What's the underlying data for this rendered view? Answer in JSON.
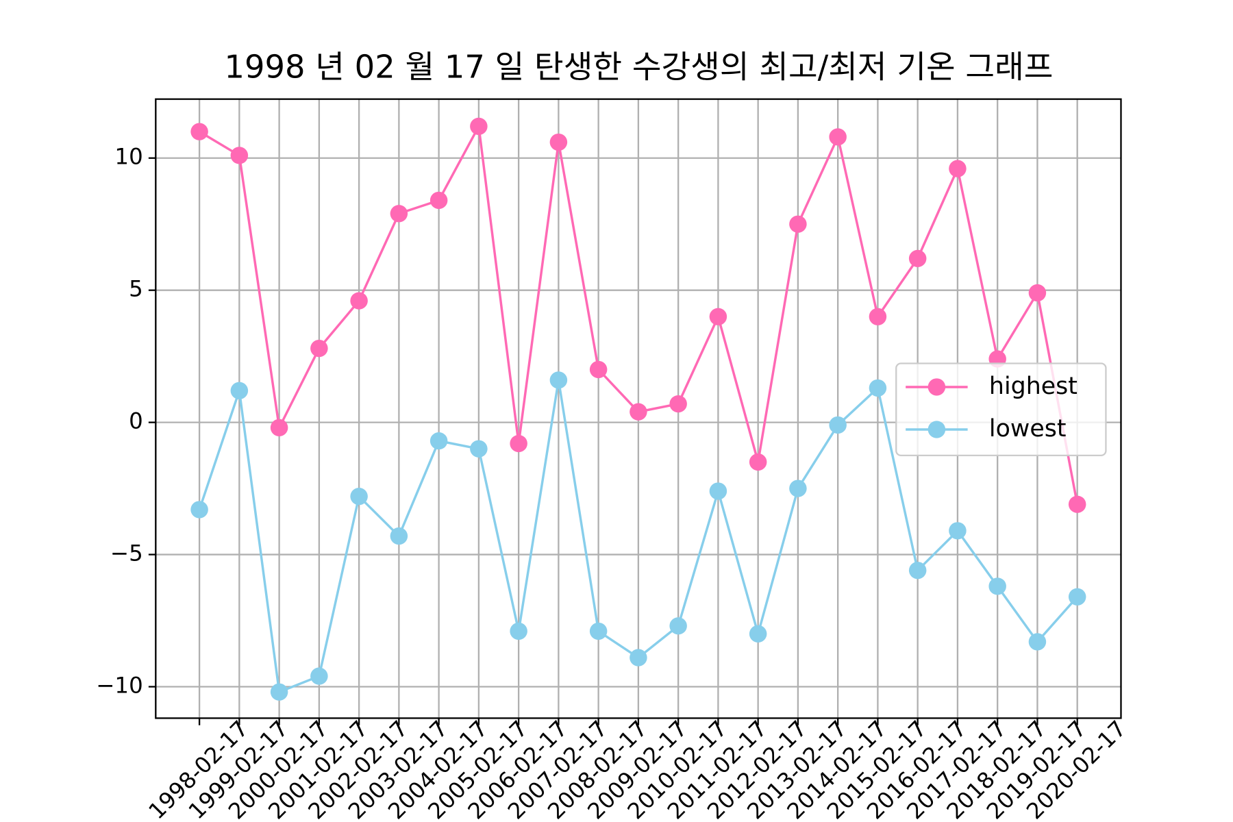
{
  "chart_data": {
    "type": "line",
    "title": "1998 년 02 월 17 일 탄생한 수강생의 최고/최저 기온 그래프",
    "categories": [
      "1998-02-17",
      "1999-02-17",
      "2000-02-17",
      "2001-02-17",
      "2002-02-17",
      "2003-02-17",
      "2004-02-17",
      "2005-02-17",
      "2006-02-17",
      "2007-02-17",
      "2008-02-17",
      "2009-02-17",
      "2010-02-17",
      "2011-02-17",
      "2012-02-17",
      "2013-02-17",
      "2014-02-17",
      "2015-02-17",
      "2016-02-17",
      "2017-02-17",
      "2018-02-17",
      "2019-02-17",
      "2020-02-17"
    ],
    "series": [
      {
        "name": "highest",
        "color": "#ff69b4",
        "values": [
          11.0,
          10.1,
          -0.2,
          2.8,
          4.6,
          7.9,
          8.4,
          11.2,
          -0.8,
          10.6,
          2.0,
          0.4,
          0.7,
          4.0,
          -1.5,
          7.5,
          10.8,
          4.0,
          6.2,
          9.6,
          2.4,
          4.9,
          -3.1
        ]
      },
      {
        "name": "lowest",
        "color": "#87ceeb",
        "values": [
          -3.3,
          1.2,
          -10.2,
          -9.6,
          -2.8,
          -4.3,
          -0.7,
          -1.0,
          -7.9,
          1.6,
          -7.9,
          -8.9,
          -7.7,
          -2.6,
          -8.0,
          -2.5,
          -0.1,
          1.3,
          -5.6,
          -4.1,
          -6.2,
          -8.3,
          -6.6
        ]
      }
    ],
    "ylim": [
      -11.19,
      12.23
    ],
    "yticks": [
      {
        "value": -10,
        "label": "−10"
      },
      {
        "value": -5,
        "label": "−5"
      },
      0,
      5,
      10
    ],
    "grid": true,
    "legend": "center right"
  }
}
